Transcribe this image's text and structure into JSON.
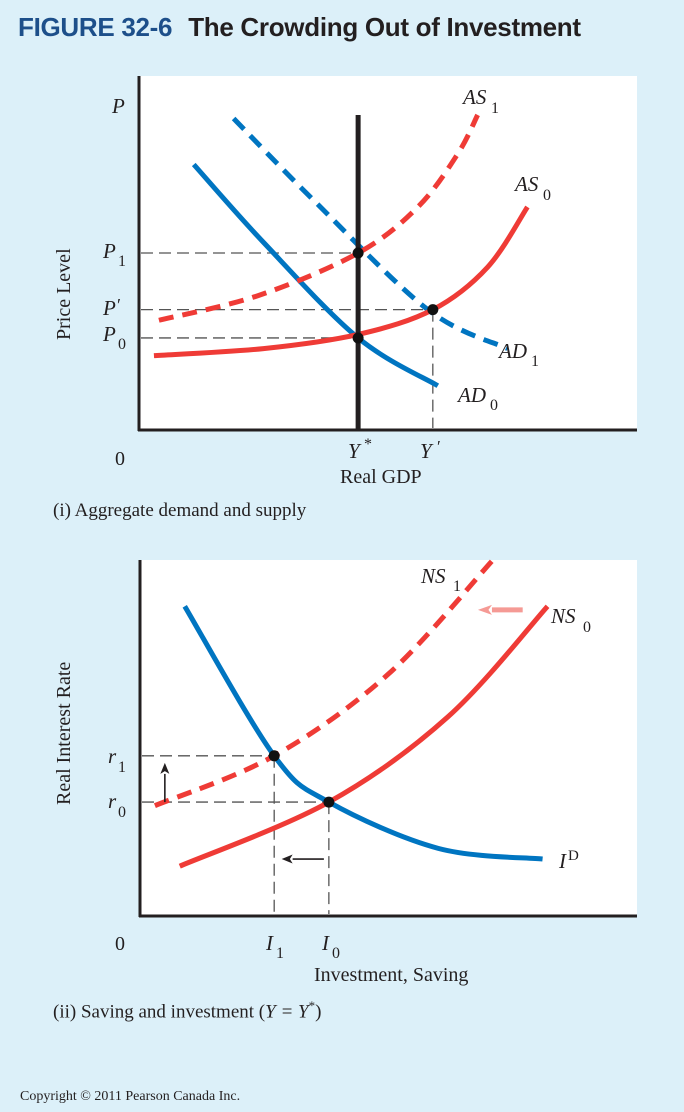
{
  "header": {
    "figure_number": "FIGURE 32-6",
    "title": "The Crowding Out of Investment"
  },
  "colors": {
    "background": "#dcf0f9",
    "plot_background": "#ffffff",
    "demand_blue": "#0075c1",
    "supply_red": "#ef3b36",
    "arrow_pink": "#f59a95",
    "axis": "#231f20",
    "guide": "#555555",
    "figure_number_blue": "#1d4f8a"
  },
  "chart_data": [
    {
      "type": "line",
      "panel": "(i)",
      "caption": "(i) Aggregate demand and supply",
      "xlabel": "Real GDP",
      "ylabel": "Price Level",
      "y_axis_letter": "P",
      "origin_label": "0",
      "xlim": [
        0,
        10
      ],
      "ylim": [
        0,
        10
      ],
      "grid": false,
      "series": [
        {
          "name": "AD_0",
          "label_main": "AD",
          "label_sub": "0",
          "style": "solid",
          "color": "blue",
          "points": [
            [
              1.1,
              7.5
            ],
            [
              2.5,
              5.3
            ],
            [
              4.4,
              2.6
            ],
            [
              6.0,
              1.25
            ]
          ]
        },
        {
          "name": "AD_1",
          "label_main": "AD",
          "label_sub": "1",
          "style": "dashed",
          "color": "blue",
          "points": [
            [
              1.9,
              8.8
            ],
            [
              3.5,
              6.5
            ],
            [
              5.8,
              3.4
            ],
            [
              7.4,
              2.3
            ]
          ]
        },
        {
          "name": "AS_0",
          "label_main": "AS",
          "label_sub": "0",
          "style": "solid",
          "color": "red",
          "points": [
            [
              0.3,
              2.1
            ],
            [
              2.5,
              2.3
            ],
            [
              4.4,
              2.7
            ],
            [
              5.9,
              3.4
            ],
            [
              7.0,
              4.6
            ],
            [
              7.8,
              6.3
            ]
          ]
        },
        {
          "name": "AS_1",
          "label_main": "AS",
          "label_sub": "1",
          "style": "dashed",
          "color": "red",
          "points": [
            [
              0.4,
              3.1
            ],
            [
              2.4,
              3.8
            ],
            [
              4.4,
              5.0
            ],
            [
              5.6,
              6.3
            ],
            [
              6.4,
              7.8
            ],
            [
              6.8,
              8.9
            ]
          ]
        },
        {
          "name": "LRAS",
          "style": "solid",
          "color": "black",
          "points": [
            [
              4.4,
              0
            ],
            [
              4.4,
              8.9
            ]
          ]
        }
      ],
      "equilibria": [
        {
          "name": "E0",
          "x": 4.4,
          "y": 2.6
        },
        {
          "name": "E1",
          "x": 4.4,
          "y": 5.0
        },
        {
          "name": "E_prime",
          "x": 5.9,
          "y": 3.4
        }
      ],
      "y_ticks": [
        {
          "main": "P",
          "sub": "1",
          "prime": "",
          "value": 5.0
        },
        {
          "main": "P",
          "sub": "",
          "prime": "′",
          "value": 3.4
        },
        {
          "main": "P",
          "sub": "0",
          "prime": "",
          "value": 2.6
        }
      ],
      "x_ticks": [
        {
          "main": "Y",
          "sup": "*",
          "value": 4.4
        },
        {
          "main": "Y",
          "sup": "′",
          "value": 5.9
        }
      ]
    },
    {
      "type": "line",
      "panel": "(ii)",
      "caption_prefix": "(ii) Saving and investment (",
      "caption_eq": "Y = Y",
      "caption_sup": "*",
      "caption_suffix": ")",
      "xlabel": "Investment, Saving",
      "ylabel": "Real Interest Rate",
      "origin_label": "0",
      "xlim": [
        0,
        10
      ],
      "ylim": [
        0,
        10
      ],
      "grid": false,
      "series": [
        {
          "name": "I_D",
          "label_main": "I",
          "label_sup": "D",
          "style": "solid",
          "color": "blue",
          "points": [
            [
              0.9,
              8.7
            ],
            [
              2.7,
              4.5
            ],
            [
              3.8,
              3.2
            ],
            [
              6.0,
              1.9
            ],
            [
              8.1,
              1.6
            ]
          ]
        },
        {
          "name": "NS_0",
          "label_main": "NS",
          "label_sub": "0",
          "style": "solid",
          "color": "red",
          "points": [
            [
              0.8,
              1.4
            ],
            [
              3.8,
              3.2
            ],
            [
              6.2,
              5.6
            ],
            [
              8.2,
              8.7
            ]
          ]
        },
        {
          "name": "NS_1",
          "label_main": "NS",
          "label_sub": "1",
          "style": "dashed",
          "color": "red",
          "points": [
            [
              0.3,
              3.1
            ],
            [
              2.7,
              4.5
            ],
            [
              5.0,
              6.8
            ],
            [
              7.1,
              10.0
            ]
          ]
        }
      ],
      "equilibria": [
        {
          "name": "E0",
          "x": 3.8,
          "y": 3.2
        },
        {
          "name": "E1",
          "x": 2.7,
          "y": 4.5
        }
      ],
      "y_ticks": [
        {
          "main": "r",
          "sub": "1",
          "value": 4.5
        },
        {
          "main": "r",
          "sub": "0",
          "value": 3.2
        }
      ],
      "x_ticks": [
        {
          "main": "I",
          "sub": "1",
          "value": 2.7
        },
        {
          "main": "I",
          "sub": "0",
          "value": 3.8
        }
      ],
      "annotations": [
        {
          "name": "shift-arrow-NS",
          "from": [
            7.7,
            8.6
          ],
          "to": [
            6.8,
            8.6
          ],
          "color": "pink"
        },
        {
          "name": "rate-rise-arrow",
          "from": [
            0.5,
            3.2
          ],
          "to": [
            0.5,
            4.3
          ],
          "color": "black"
        },
        {
          "name": "investment-fall-arrow",
          "from": [
            3.7,
            1.6
          ],
          "to": [
            2.85,
            1.6
          ],
          "color": "black"
        }
      ]
    }
  ],
  "footer": {
    "copyright": "Copyright © 2011 Pearson Canada Inc."
  }
}
